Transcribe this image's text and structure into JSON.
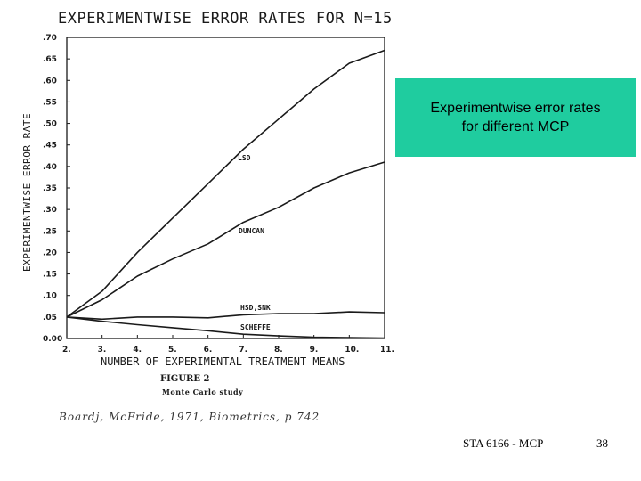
{
  "slide": {
    "callout_line1": "Experimentwise error rates",
    "callout_line2": "for different MCP",
    "footer_course": "STA 6166 - MCP",
    "footer_page": "38"
  },
  "figure": {
    "caption": "FIGURE 2",
    "subcaption": "Monte Carlo study",
    "citation": "Boardj, McFride, 1971, Biometrics, p 742"
  },
  "chart_data": {
    "type": "line",
    "title": "EXPERIMENTWISE ERROR RATES FOR N=15",
    "xlabel": "NUMBER OF EXPERIMENTAL TREATMENT MEANS",
    "ylabel": "EXPERIMENTWISE ERROR RATE",
    "x_ticks": [
      "2.",
      "3.",
      "4.",
      "5.",
      "6.",
      "7.",
      "8.",
      "9.",
      "10.",
      "11."
    ],
    "y_ticks": [
      ".70",
      ".65",
      ".60",
      ".55",
      ".50",
      ".45",
      ".40",
      ".35",
      ".30",
      ".25",
      ".20",
      ".15",
      ".10",
      ".05",
      "0.00"
    ],
    "xlim": [
      2,
      11
    ],
    "ylim": [
      0,
      0.7
    ],
    "grid": false,
    "series": [
      {
        "name": "LSD",
        "x": [
          2,
          3,
          4,
          5,
          6,
          7,
          8,
          9,
          10,
          10.5,
          11
        ],
        "y": [
          0.05,
          0.11,
          0.2,
          0.28,
          0.36,
          0.44,
          0.51,
          0.58,
          0.64,
          0.655,
          0.67
        ]
      },
      {
        "name": "DUNCAN",
        "x": [
          2,
          3,
          4,
          5,
          6,
          7,
          8,
          9,
          10,
          11
        ],
        "y": [
          0.05,
          0.09,
          0.145,
          0.185,
          0.22,
          0.27,
          0.305,
          0.35,
          0.385,
          0.41
        ]
      },
      {
        "name": "HSD, SNK",
        "x": [
          2,
          3,
          4,
          5,
          6,
          7,
          8,
          9,
          10,
          11
        ],
        "y": [
          0.05,
          0.045,
          0.05,
          0.05,
          0.048,
          0.055,
          0.058,
          0.058,
          0.062,
          0.06
        ]
      },
      {
        "name": "SCHEFFE",
        "x": [
          2,
          3,
          4,
          5,
          6,
          7,
          8,
          9,
          10,
          11
        ],
        "y": [
          0.05,
          0.04,
          0.032,
          0.025,
          0.018,
          0.01,
          0.006,
          0.003,
          0.002,
          0.001
        ]
      }
    ],
    "series_label_display": [
      "LSD",
      "DUNCAN",
      "HSD,SNK",
      "SCHEFFE"
    ]
  }
}
